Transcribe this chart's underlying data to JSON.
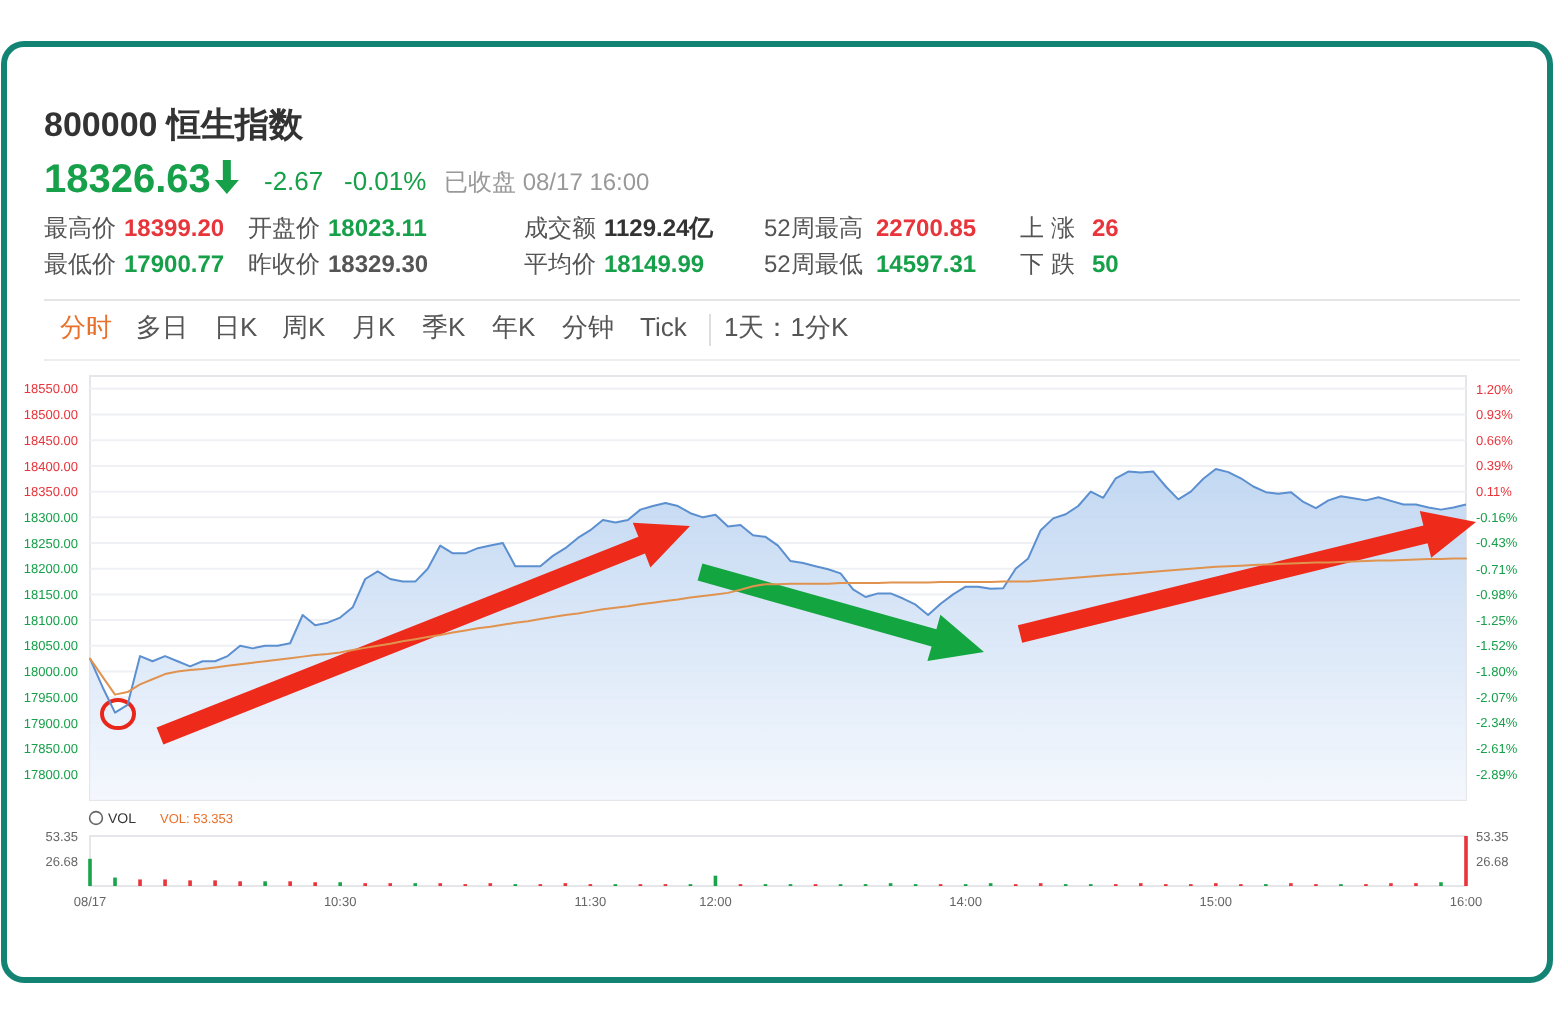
{
  "chart_data": [
    {
      "type": "line",
      "title": "800000 恒生指数",
      "subtitle": "18326.63",
      "annotations": [
        "-2.67",
        "-0.01%",
        "已收盘 08/17 16:00",
        "最高价",
        "18399.20",
        "开盘价",
        "18023.11",
        "成交额",
        "1129.24亿",
        "52周最高",
        "22700.85",
        "上 涨",
        "26",
        "最低价",
        "17900.77",
        "昨收价",
        "18329.30",
        "平均价",
        "18149.99",
        "52周最低",
        "14597.31",
        "下 跌",
        "50",
        "分时",
        "多日",
        "日K",
        "周K",
        "月K",
        "季K",
        "年K",
        "分钟",
        "Tick",
        "1天：1分K"
      ],
      "categories": [
        null,
        null,
        null,
        null,
        null,
        null,
        null,
        null,
        null,
        null,
        null,
        null,
        null,
        null,
        null,
        null,
        null,
        null,
        null,
        null,
        null,
        null,
        null,
        null,
        null,
        null,
        null,
        null,
        null,
        null,
        null,
        null,
        null,
        null,
        null,
        null,
        null,
        null,
        null,
        null,
        null,
        null,
        null,
        null,
        null,
        null,
        null,
        null,
        null,
        null,
        null,
        null,
        null,
        null,
        null,
        null,
        null,
        null,
        null,
        null,
        null,
        null,
        null,
        null,
        null,
        null,
        null,
        null,
        null,
        null,
        null,
        null,
        null,
        null,
        null,
        null,
        null,
        null,
        null,
        null,
        null,
        null,
        null,
        null,
        null,
        null,
        null,
        null,
        null,
        null,
        null,
        null,
        null,
        null,
        null,
        null,
        null,
        null,
        null,
        null,
        null,
        null,
        null,
        null,
        null,
        null,
        null,
        null,
        null,
        null,
        null
      ],
      "series": [
        {
          "type": "area",
          "color": "#5b8fd0",
          "values": [
            18025,
            17970,
            17920,
            17935,
            18030,
            18020,
            18030,
            18020,
            18010,
            18020,
            18020,
            18030,
            18050,
            18045,
            18050,
            18050,
            18055,
            18110,
            18090,
            18095,
            18105,
            18125,
            18180,
            18195,
            18180,
            18175,
            18175,
            18200,
            18245,
            18230,
            18230,
            18240,
            18245,
            18250,
            18205,
            18205,
            18205,
            18225,
            18240,
            18260,
            18275,
            18295,
            18290,
            18295,
            18315,
            18322,
            18328,
            18322,
            18308,
            18300,
            18305,
            18282,
            18285,
            18265,
            18262,
            18245,
            18215,
            18211,
            18205,
            18199,
            18191,
            18160,
            18145,
            18152,
            18152,
            18142,
            18130,
            18110,
            18132,
            18150,
            18165,
            18165,
            18161,
            18162,
            18200,
            18220,
            18275,
            18298,
            18306,
            18322,
            18350,
            18338,
            18376,
            18389,
            18387,
            18389,
            18360,
            18335,
            18350,
            18375,
            18394,
            18388,
            18376,
            18360,
            18349,
            18346,
            18349,
            18330,
            18318,
            18333,
            18341,
            18337,
            18333,
            18339,
            18332,
            18325,
            18325,
            18319,
            18315,
            18319,
            18325
          ]
        },
        {
          "color": "#e0924f",
          "values": [
            18025,
            17990,
            17955,
            17960,
            17975,
            17985,
            17995,
            18000,
            18003,
            18005,
            18008,
            18011,
            18014,
            18017,
            18020,
            18023,
            18026,
            18029,
            18032,
            18034,
            18037,
            18042,
            18046,
            18050,
            18054,
            18059,
            18063,
            18067,
            18071,
            18076,
            18080,
            18084,
            18087,
            18091,
            18095,
            18098,
            18102,
            18106,
            18110,
            18113,
            18117,
            18121,
            18124,
            18127,
            18131,
            18134,
            18137,
            18140,
            18144,
            18147,
            18150,
            18153,
            18159,
            18166,
            18170,
            18170,
            18171,
            18171,
            18171,
            18171,
            18172,
            18172,
            18172,
            18172,
            18173,
            18173,
            18173,
            18173,
            18174,
            18174,
            18174,
            18174,
            18174,
            18175,
            18175,
            18175,
            18177,
            18179,
            18181,
            18183,
            18185,
            18187,
            18189,
            18190,
            18192,
            18194,
            18196,
            18198,
            18200,
            18202,
            18204,
            18205,
            18206,
            18207,
            18208,
            18209,
            18210,
            18211,
            18212,
            18212,
            18213,
            18214,
            18215,
            18216,
            18216,
            18217,
            18218,
            18219,
            18219,
            18220,
            18220
          ]
        }
      ],
      "ylim": [
        17750,
        18575
      ],
      "yticks": [
        {
          "value": 17800,
          "label": "17800.00"
        },
        {
          "value": 17850,
          "label": "17850.00"
        },
        {
          "value": 17900,
          "label": "17900.00"
        },
        {
          "value": 17950,
          "label": "17950.00"
        },
        {
          "value": 18000,
          "label": "18000.00"
        },
        {
          "value": 18050,
          "label": "18050.00"
        },
        {
          "value": 18100,
          "label": "18100.00"
        },
        {
          "value": 18150,
          "label": "18150.00"
        },
        {
          "value": 18200,
          "label": "18200.00"
        },
        {
          "value": 18250,
          "label": "18250.00"
        },
        {
          "value": 18300,
          "label": "18300.00"
        },
        {
          "value": 18350,
          "label": "18350.00"
        },
        {
          "value": 18400,
          "label": "18400.00"
        },
        {
          "value": 18450,
          "label": "18450.00"
        },
        {
          "value": 18500,
          "label": "18500.00"
        },
        {
          "value": 18550,
          "label": "18550.00"
        }
      ],
      "y2lim": [
        -3.16,
        1.34
      ],
      "y2ticks": [
        {
          "value": -2.89,
          "label": "-2.89%"
        },
        {
          "value": -2.61,
          "label": "-2.61%"
        },
        {
          "value": -2.34,
          "label": "-2.34%"
        },
        {
          "value": -2.07,
          "label": "-2.07%"
        },
        {
          "value": -1.8,
          "label": "-1.80%"
        },
        {
          "value": -1.52,
          "label": "-1.52%"
        },
        {
          "value": -1.25,
          "label": "-1.25%"
        },
        {
          "value": -0.98,
          "label": "-0.98%"
        },
        {
          "value": -0.71,
          "label": "-0.71%"
        },
        {
          "value": -0.43,
          "label": "-0.43%"
        },
        {
          "value": -0.16,
          "label": "-0.16%"
        },
        {
          "value": 0.11,
          "label": "0.11%"
        },
        {
          "value": 0.39,
          "label": "0.39%"
        },
        {
          "value": 0.66,
          "label": "0.66%"
        },
        {
          "value": 0.93,
          "label": "0.93%"
        },
        {
          "value": 1.2,
          "label": "1.20%"
        }
      ],
      "grid": "y",
      "tick_labels": "y"
    },
    {
      "type": "bar",
      "title": "VOL",
      "annotations": [
        "VOL: 53.353"
      ],
      "categories": [
        "08/17",
        null,
        null,
        null,
        null,
        null,
        null,
        null,
        null,
        null,
        "10:30",
        null,
        null,
        null,
        null,
        null,
        null,
        null,
        null,
        null,
        "11:30",
        null,
        null,
        null,
        null,
        "12:00",
        null,
        null,
        null,
        null,
        null,
        null,
        null,
        null,
        null,
        "14:00",
        null,
        null,
        null,
        null,
        null,
        null,
        null,
        null,
        null,
        "15:00",
        null,
        null,
        null,
        null,
        null,
        null,
        null,
        null,
        null,
        "16:00"
      ],
      "values": [
        29,
        9,
        7,
        7,
        6,
        6,
        5,
        5,
        5,
        4,
        4,
        3,
        3,
        3,
        3,
        2,
        3,
        2,
        2,
        3,
        2,
        2,
        2,
        2,
        2,
        11,
        2,
        2,
        2,
        2,
        2,
        2,
        3,
        2,
        2,
        2,
        3,
        2,
        3,
        2,
        2,
        2,
        3,
        2,
        2,
        3,
        2,
        2,
        3,
        2,
        2,
        2,
        3,
        3,
        4,
        53.35
      ],
      "colors": [
        "#1aa34a",
        "#1aa34a",
        "#e8343b",
        "#e8343b",
        "#e8343b",
        "#e8343b",
        "#e8343b",
        "#1aa34a",
        "#e8343b",
        "#e8343b",
        "#1aa34a",
        "#e8343b",
        "#e8343b",
        "#1aa34a",
        "#e8343b",
        "#e8343b",
        "#e8343b",
        "#1aa34a",
        "#e8343b",
        "#e8343b",
        "#e8343b",
        "#1aa34a",
        "#e8343b",
        "#e8343b",
        "#1aa34a",
        "#1aa34a",
        "#e8343b",
        "#1aa34a",
        "#1aa34a",
        "#e8343b",
        "#1aa34a",
        "#1aa34a",
        "#1aa34a",
        "#1aa34a",
        "#e8343b",
        "#1aa34a",
        "#1aa34a",
        "#e8343b",
        "#e8343b",
        "#1aa34a",
        "#1aa34a",
        "#e8343b",
        "#e8343b",
        "#e8343b",
        "#e8343b",
        "#e8343b",
        "#e8343b",
        "#1aa34a",
        "#e8343b",
        "#e8343b",
        "#1aa34a",
        "#e8343b",
        "#e8343b",
        "#e8343b",
        "#1aa34a",
        "#e8343b"
      ],
      "ylim": [
        0,
        53.35
      ],
      "yticks": [
        26.68,
        53.35
      ],
      "y2lim": [
        0,
        53.35
      ],
      "y2ticks": [
        26.68,
        53.35
      ]
    }
  ]
}
